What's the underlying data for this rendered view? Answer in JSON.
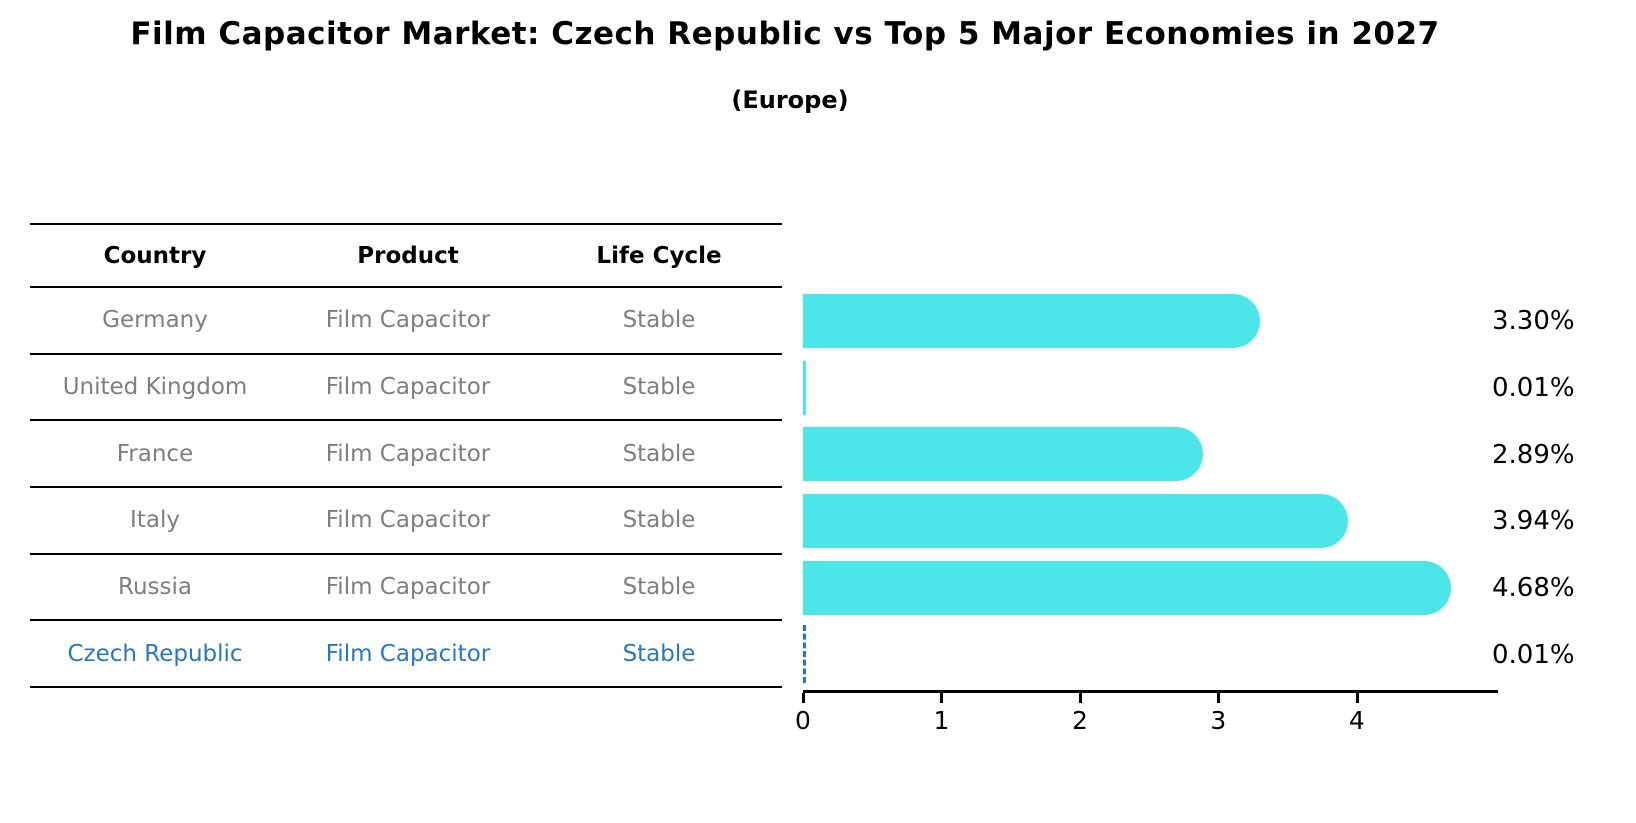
{
  "title": "Film Capacitor Market: Czech Republic vs Top 5 Major Economies in 2027",
  "subtitle": "(Europe)",
  "table": {
    "headers": [
      "Country",
      "Product",
      "Life Cycle"
    ],
    "rows": [
      {
        "country": "Germany",
        "product": "Film Capacitor",
        "life_cycle": "Stable",
        "highlighted": false
      },
      {
        "country": "United Kingdom",
        "product": "Film Capacitor",
        "life_cycle": "Stable",
        "highlighted": false
      },
      {
        "country": "France",
        "product": "Film Capacitor",
        "life_cycle": "Stable",
        "highlighted": false
      },
      {
        "country": "Italy",
        "product": "Film Capacitor",
        "life_cycle": "Stable",
        "highlighted": false
      },
      {
        "country": "Russia",
        "product": "Film Capacitor",
        "life_cycle": "Stable",
        "highlighted": false
      },
      {
        "country": "Czech Republic",
        "product": "Film Capacitor",
        "life_cycle": "Stable",
        "highlighted": true
      }
    ]
  },
  "chart_data": {
    "type": "bar",
    "orientation": "horizontal",
    "categories": [
      "Germany",
      "United Kingdom",
      "France",
      "Italy",
      "Russia",
      "Czech Republic"
    ],
    "values": [
      3.3,
      0.01,
      2.89,
      3.94,
      4.68,
      0.01
    ],
    "value_labels": [
      "3.30%",
      "0.01%",
      "2.89%",
      "3.94%",
      "4.68%",
      "0.01%"
    ],
    "xlabel": "",
    "ylabel": "",
    "xlim": [
      0,
      5.02
    ],
    "xticks": [
      0,
      1,
      2,
      3,
      4
    ],
    "grid": false,
    "legend": false,
    "bar_color": "#4ae6e8",
    "highlight_index": 5,
    "highlight_style": "dashed-zero-marker",
    "highlight_color": "#2878be"
  },
  "colors": {
    "background": "#ffffff",
    "table_line": "#000000",
    "row_text": "#7f7f7f",
    "header_text": "#000000",
    "highlight_text": "#2878be",
    "bar": "#4ae6e8",
    "axis": "#000000"
  }
}
